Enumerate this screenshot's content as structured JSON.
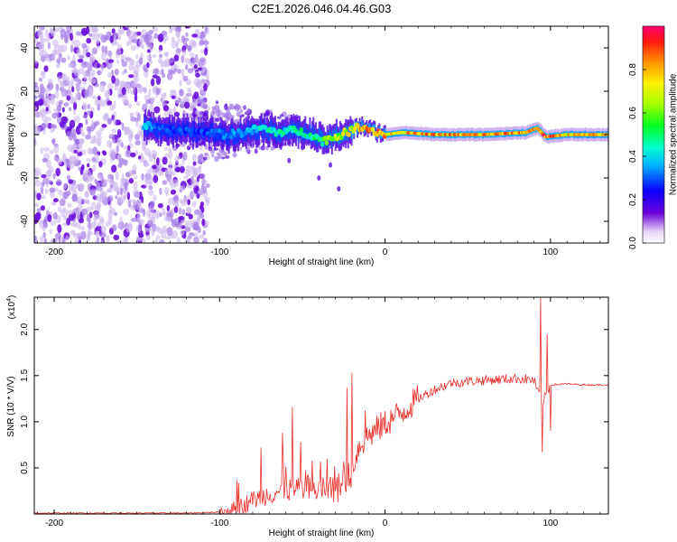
{
  "title": "C2E1.2026.046.04.46.G03",
  "chart_data": [
    {
      "type": "heatmap",
      "name": "spectrogram",
      "xlabel": "Height of straight line (km)",
      "ylabel": "Frequency (Hz)",
      "xlim": [
        -212,
        135
      ],
      "ylim": [
        -50,
        50
      ],
      "xticks": [
        -200,
        -100,
        0,
        100
      ],
      "yticks": [
        -40,
        -20,
        0,
        20,
        40
      ],
      "colorbar": {
        "label": "Normalized spectral amplitude",
        "range": [
          0,
          1
        ],
        "ticks": [
          0.0,
          0.2,
          0.4,
          0.6,
          0.8
        ]
      },
      "ridge": [
        {
          "x": -145,
          "f": 4,
          "amp": 0.4
        },
        {
          "x": -130,
          "f": 2,
          "amp": 0.3
        },
        {
          "x": -110,
          "f": 1,
          "amp": 0.3
        },
        {
          "x": -95,
          "f": 0,
          "amp": 0.35
        },
        {
          "x": -85,
          "f": 1,
          "amp": 0.4
        },
        {
          "x": -75,
          "f": 3,
          "amp": 0.45
        },
        {
          "x": -65,
          "f": 1,
          "amp": 0.5
        },
        {
          "x": -55,
          "f": 2,
          "amp": 0.5
        },
        {
          "x": -45,
          "f": 0,
          "amp": 0.5
        },
        {
          "x": -38,
          "f": -3,
          "amp": 0.6
        },
        {
          "x": -30,
          "f": -1,
          "amp": 0.7
        },
        {
          "x": -20,
          "f": 2,
          "amp": 0.8
        },
        {
          "x": -15,
          "f": 4,
          "amp": 0.9
        },
        {
          "x": -8,
          "f": 2,
          "amp": 0.9
        },
        {
          "x": 0,
          "f": 0,
          "amp": 0.85
        },
        {
          "x": 10,
          "f": 1,
          "amp": 0.85
        },
        {
          "x": 30,
          "f": 0,
          "amp": 0.9
        },
        {
          "x": 60,
          "f": 0,
          "amp": 0.9
        },
        {
          "x": 85,
          "f": 1,
          "amp": 0.9
        },
        {
          "x": 92,
          "f": 3,
          "amp": 0.95
        },
        {
          "x": 97,
          "f": -1,
          "amp": 0.95
        },
        {
          "x": 110,
          "f": 0,
          "amp": 0.85
        },
        {
          "x": 135,
          "f": 0,
          "amp": 0.85
        }
      ]
    },
    {
      "type": "line",
      "name": "snr",
      "xlabel": "Height of straight line (km)",
      "ylabel": "SNR (10 * V/V)",
      "yscale_label": "(x10",
      "yscale_exp": "4",
      "xlim": [
        -212,
        135
      ],
      "ylim": [
        0,
        2.35
      ],
      "xticks": [
        -200,
        -100,
        0,
        100
      ],
      "yticks": [
        0.5,
        1.0,
        1.5,
        2.0
      ],
      "ytick_labels": [
        "0.5",
        "1.0",
        "1.5",
        "2.0"
      ],
      "color": "#e8302b",
      "series": [
        {
          "name": "SNR",
          "x": [
            -212,
            -180,
            -150,
            -120,
            -100,
            -90,
            -80,
            -70,
            -60,
            -50,
            -40,
            -30,
            -20,
            -18,
            -15,
            -10,
            0,
            10,
            20,
            30,
            40,
            50,
            60,
            70,
            80,
            90,
            95,
            100,
            110,
            120,
            135
          ],
          "y": [
            0.01,
            0.01,
            0.01,
            0.01,
            0.02,
            0.06,
            0.15,
            0.22,
            0.26,
            0.25,
            0.27,
            0.25,
            0.45,
            0.62,
            0.75,
            0.85,
            0.98,
            1.1,
            1.25,
            1.35,
            1.42,
            1.44,
            1.45,
            1.46,
            1.47,
            1.45,
            1.2,
            1.4,
            1.41,
            1.4,
            1.4
          ]
        }
      ],
      "spikes": [
        {
          "x": -75,
          "y": 0.72
        },
        {
          "x": -62,
          "y": 0.88
        },
        {
          "x": -56,
          "y": 1.16
        },
        {
          "x": -51,
          "y": 0.78
        },
        {
          "x": -44,
          "y": 0.58
        },
        {
          "x": -35,
          "y": 0.6
        },
        {
          "x": -23,
          "y": 1.37
        },
        {
          "x": -20,
          "y": 1.53
        },
        {
          "x": -12,
          "y": 1.12
        },
        {
          "x": 94,
          "y": 2.35
        },
        {
          "x": 95,
          "y": 0.67
        },
        {
          "x": 98,
          "y": 1.95
        },
        {
          "x": 100,
          "y": 0.9
        }
      ]
    }
  ]
}
